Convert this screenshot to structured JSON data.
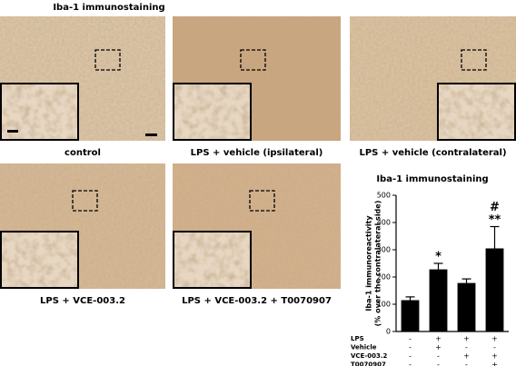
{
  "header": {
    "title": "Iba-1 immunostaining"
  },
  "panels": [
    {
      "caption": "control"
    },
    {
      "caption": "LPS + vehicle (ipsilateral)"
    },
    {
      "caption": "LPS + vehicle (contralateral)"
    },
    {
      "caption": "LPS + VCE-003.2"
    },
    {
      "caption": "LPS + VCE-003.2 + T0070907"
    }
  ],
  "chart_data": {
    "type": "bar",
    "title": "Iba-1 immunostaining",
    "ylabel": [
      "Iba-1 immunoreactivity",
      "(% over the contralateral side)"
    ],
    "categories": [
      null,
      null,
      null,
      null
    ],
    "values": [
      115,
      228,
      178,
      305
    ],
    "errors": [
      12,
      22,
      15,
      80
    ],
    "color": "#000000",
    "ylim": [
      0,
      500
    ],
    "yticks": [
      0,
      100,
      200,
      300,
      400,
      500
    ],
    "annotations": [
      [],
      [
        "*"
      ],
      [],
      [
        "#",
        "**"
      ]
    ],
    "treatments": [
      {
        "name": "LPS",
        "signs": [
          "-",
          "+",
          "+",
          "+"
        ]
      },
      {
        "name": "Vehicle",
        "signs": [
          "-",
          "+",
          "-",
          "-"
        ]
      },
      {
        "name": "VCE-003.2",
        "signs": [
          "-",
          "-",
          "+",
          "+"
        ]
      },
      {
        "name": "T0070907",
        "signs": [
          "-",
          "-",
          "-",
          "+"
        ]
      }
    ]
  }
}
